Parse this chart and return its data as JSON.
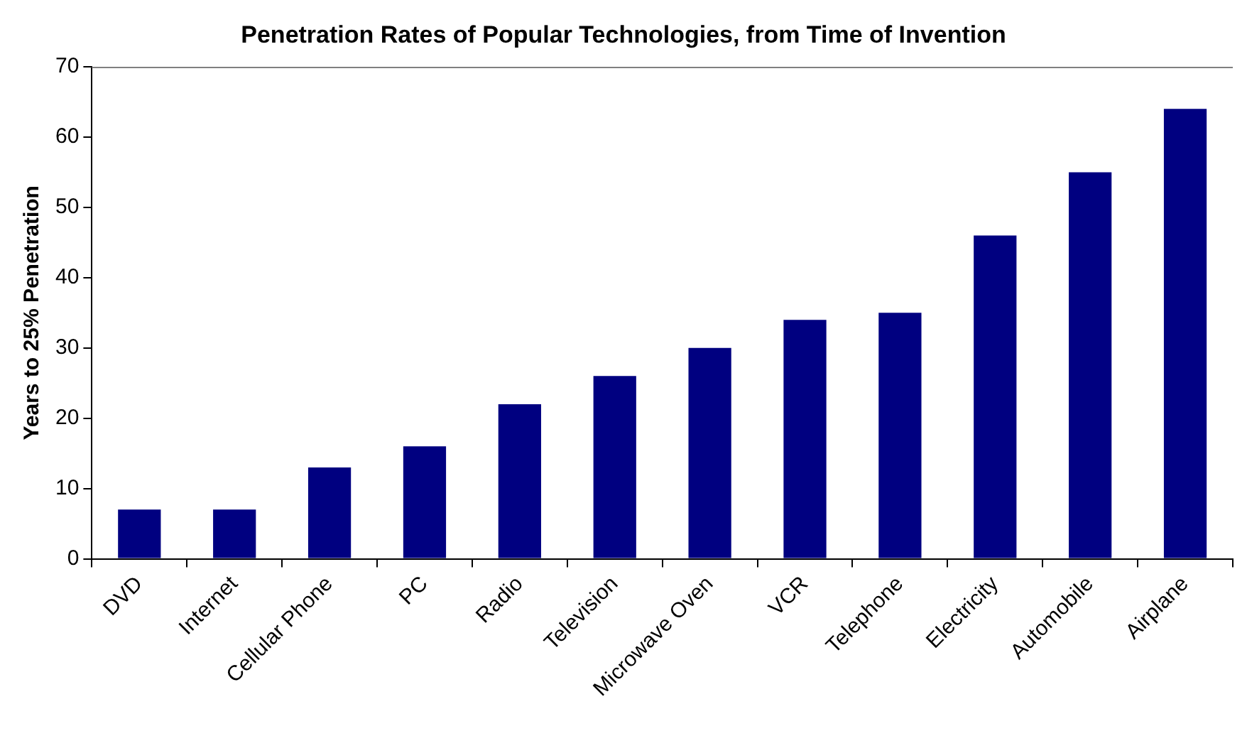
{
  "chart_data": {
    "type": "bar",
    "title": "Penetration Rates of Popular Technologies, from Time of Invention",
    "ylabel": "Years to 25% Penetration",
    "categories": [
      "DVD",
      "Internet",
      "Cellular Phone",
      "PC",
      "Radio",
      "Television",
      "Microwave Oven",
      "VCR",
      "Telephone",
      "Electricity",
      "Automobile",
      "Airplane"
    ],
    "values": [
      7,
      7,
      13,
      16,
      22,
      26,
      30,
      34,
      35,
      46,
      55,
      64
    ],
    "color": "#000080",
    "ylim": [
      0,
      70
    ],
    "yticks": [
      0,
      10,
      20,
      30,
      40,
      50,
      60,
      70
    ],
    "grid": false,
    "legend": false
  }
}
